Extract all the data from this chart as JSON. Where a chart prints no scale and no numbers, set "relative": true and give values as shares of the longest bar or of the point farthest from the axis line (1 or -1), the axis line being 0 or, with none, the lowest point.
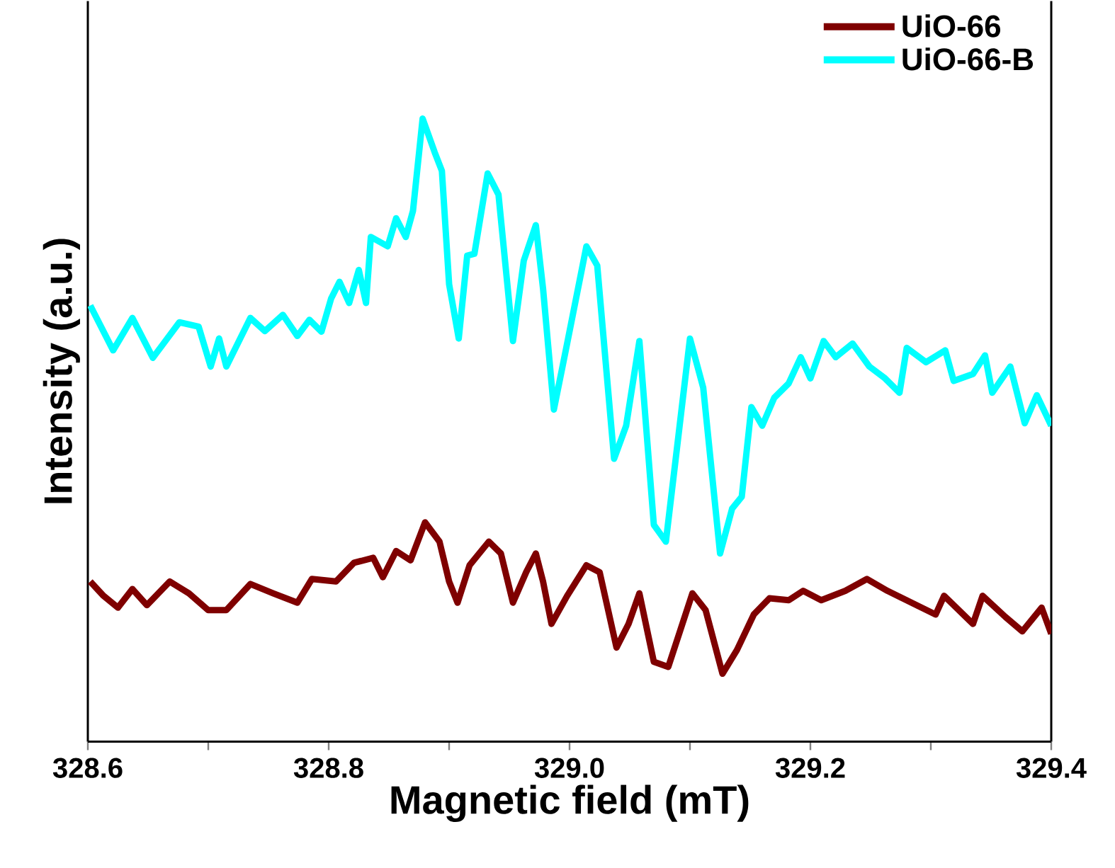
{
  "chart_data": {
    "type": "line",
    "xlabel": "Magnetic field (mT)",
    "ylabel": "Intensity (a.u.)",
    "relative": true,
    "legend": "top right",
    "xlim": [
      328.6,
      329.4
    ],
    "xticks": [
      328.6,
      {
        "value": 328.7,
        "label": null
      },
      328.8,
      {
        "value": 328.9,
        "label": null
      },
      {
        "value": 329.0,
        "label": "329.0"
      },
      {
        "value": 329.1,
        "label": null
      },
      329.2,
      {
        "value": 329.3,
        "label": null
      },
      329.4
    ],
    "series": [
      {
        "name": "UiO-66",
        "color": "#7f0000",
        "x": [
          328.602,
          328.613,
          328.625,
          328.637,
          328.649,
          328.668,
          328.684,
          328.7,
          328.715,
          328.735,
          328.754,
          328.774,
          328.786,
          328.806,
          328.821,
          328.837,
          328.845,
          328.856,
          328.868,
          328.88,
          328.892,
          328.9,
          328.907,
          328.917,
          328.933,
          328.943,
          328.953,
          328.964,
          328.972,
          328.978,
          328.985,
          328.998,
          329.014,
          329.025,
          329.039,
          329.049,
          329.058,
          329.07,
          329.082,
          329.102,
          329.113,
          329.127,
          329.139,
          329.153,
          329.166,
          329.182,
          329.194,
          329.209,
          329.229,
          329.247,
          329.264,
          329.284,
          329.304,
          329.311,
          329.335,
          329.343,
          329.362,
          329.376,
          329.392,
          329.4
        ],
        "values": [
          0.257,
          0.234,
          0.215,
          0.245,
          0.219,
          0.257,
          0.238,
          0.211,
          0.211,
          0.253,
          0.238,
          0.223,
          0.261,
          0.257,
          0.287,
          0.295,
          0.264,
          0.306,
          0.291,
          0.352,
          0.321,
          0.257,
          0.223,
          0.283,
          0.321,
          0.302,
          0.223,
          0.272,
          0.302,
          0.257,
          0.189,
          0.234,
          0.283,
          0.272,
          0.151,
          0.189,
          0.238,
          0.128,
          0.12,
          0.238,
          0.211,
          0.109,
          0.147,
          0.204,
          0.23,
          0.227,
          0.242,
          0.227,
          0.242,
          0.261,
          0.242,
          0.223,
          0.204,
          0.234,
          0.189,
          0.234,
          0.2,
          0.177,
          0.215,
          0.173
        ]
      },
      {
        "name": "UiO-66-B",
        "color": "#00ffff",
        "x": [
          328.602,
          328.621,
          328.637,
          328.654,
          328.676,
          328.692,
          328.702,
          328.709,
          328.715,
          328.735,
          328.747,
          328.762,
          328.774,
          328.784,
          328.794,
          328.802,
          328.809,
          328.817,
          328.825,
          328.831,
          328.835,
          328.849,
          328.856,
          328.864,
          328.87,
          328.878,
          328.888,
          328.894,
          328.9,
          328.908,
          328.915,
          328.921,
          328.932,
          328.941,
          328.953,
          328.962,
          328.972,
          328.978,
          328.987,
          328.998,
          329.014,
          329.023,
          329.037,
          329.047,
          329.058,
          329.07,
          329.08,
          329.1,
          329.111,
          329.125,
          329.135,
          329.143,
          329.151,
          329.16,
          329.17,
          329.182,
          329.192,
          329.2,
          329.211,
          329.221,
          329.235,
          329.249,
          329.262,
          329.274,
          329.28,
          329.296,
          329.312,
          329.319,
          329.335,
          329.345,
          329.351,
          329.366,
          329.378,
          329.388,
          329.4
        ],
        "values": [
          0.7,
          0.628,
          0.68,
          0.616,
          0.673,
          0.666,
          0.602,
          0.647,
          0.602,
          0.68,
          0.659,
          0.685,
          0.651,
          0.677,
          0.658,
          0.711,
          0.738,
          0.704,
          0.757,
          0.704,
          0.81,
          0.795,
          0.84,
          0.81,
          0.852,
          1.0,
          0.946,
          0.916,
          0.734,
          0.647,
          0.78,
          0.783,
          0.912,
          0.878,
          0.643,
          0.772,
          0.829,
          0.727,
          0.533,
          0.639,
          0.795,
          0.764,
          0.454,
          0.507,
          0.643,
          0.348,
          0.321,
          0.647,
          0.568,
          0.302,
          0.374,
          0.393,
          0.537,
          0.507,
          0.552,
          0.575,
          0.617,
          0.583,
          0.643,
          0.617,
          0.639,
          0.602,
          0.583,
          0.56,
          0.632,
          0.609,
          0.628,
          0.579,
          0.59,
          0.62,
          0.56,
          0.602,
          0.511,
          0.556,
          0.507
        ]
      }
    ]
  }
}
